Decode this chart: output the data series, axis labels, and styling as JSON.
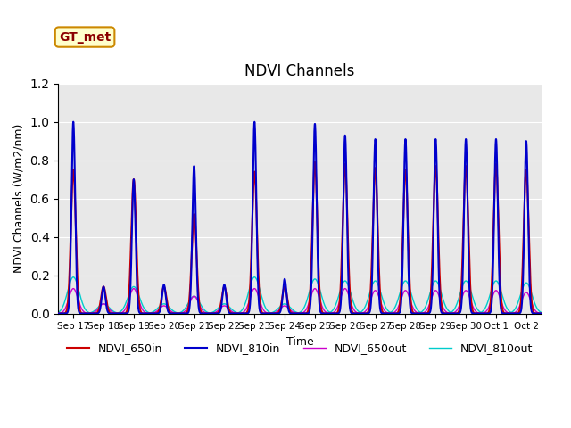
{
  "title": "NDVI Channels",
  "xlabel": "Time",
  "ylabel": "NDVI Channels (W/m2/nm)",
  "ylim": [
    0.0,
    1.2
  ],
  "total_days": 16,
  "x_tick_labels": [
    "Sep 17",
    "Sep 18",
    "Sep 19",
    "Sep 20",
    "Sep 21",
    "Sep 22",
    "Sep 23",
    "Sep 24",
    "Sep 25",
    "Sep 26",
    "Sep 27",
    "Sep 28",
    "Sep 29",
    "Sep 30",
    "Oct 1",
    "Oct 2"
  ],
  "background_color": "#e8e8e8",
  "c650in": "#cc0000",
  "c810in": "#0000cc",
  "c650out": "#cc00cc",
  "c810out": "#00cccc",
  "annotation_text": "GT_met",
  "peaks_650in": [
    0.75,
    0.14,
    0.7,
    0.14,
    0.52,
    0.14,
    0.74,
    0.14,
    0.79,
    0.78,
    0.76,
    0.75,
    0.77,
    0.77,
    0.78,
    0.75
  ],
  "peaks_810in": [
    1.0,
    0.14,
    0.7,
    0.15,
    0.77,
    0.15,
    1.0,
    0.18,
    0.99,
    0.93,
    0.91,
    0.91,
    0.91,
    0.91,
    0.91,
    0.9
  ],
  "peaks_650out": [
    0.13,
    0.05,
    0.13,
    0.04,
    0.09,
    0.04,
    0.13,
    0.04,
    0.13,
    0.13,
    0.12,
    0.12,
    0.12,
    0.12,
    0.12,
    0.11
  ],
  "peaks_810out": [
    0.19,
    0.05,
    0.14,
    0.05,
    0.09,
    0.05,
    0.19,
    0.05,
    0.18,
    0.17,
    0.17,
    0.17,
    0.17,
    0.17,
    0.17,
    0.16
  ]
}
